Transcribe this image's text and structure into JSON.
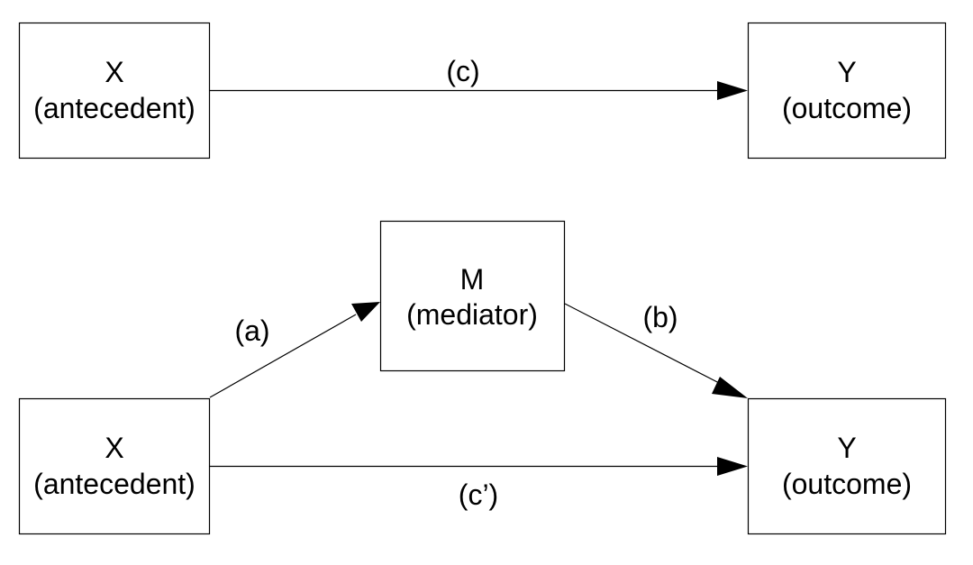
{
  "top_model": {
    "antecedent": {
      "symbol": "X",
      "role": "(antecedent)"
    },
    "outcome": {
      "symbol": "Y",
      "role": "(outcome)"
    },
    "paths": {
      "total": "(c)"
    }
  },
  "mediation_model": {
    "antecedent": {
      "symbol": "X",
      "role": "(antecedent)"
    },
    "mediator": {
      "symbol": "M",
      "role": "(mediator)"
    },
    "outcome": {
      "symbol": "Y",
      "role": "(outcome)"
    },
    "paths": {
      "a": "(a)",
      "b": "(b)",
      "direct": "(c’)"
    }
  },
  "colors": {
    "line": "#000000",
    "background": "#ffffff"
  }
}
